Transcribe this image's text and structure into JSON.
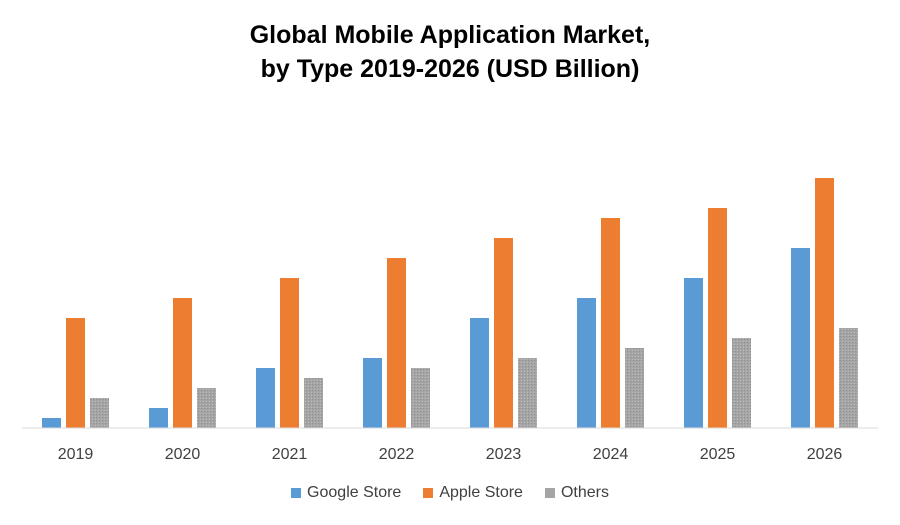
{
  "chart_data": {
    "type": "bar",
    "title_lines": [
      "Global Mobile Application Market,",
      "by Type 2019-2026 (USD Billion)"
    ],
    "categories": [
      "2019",
      "2020",
      "2021",
      "2022",
      "2023",
      "2024",
      "2025",
      "2026"
    ],
    "series": [
      {
        "name": "Google Store",
        "color": "#5B9BD5",
        "values": [
          1,
          2,
          6,
          7,
          11,
          13,
          15,
          18
        ]
      },
      {
        "name": "Apple Store",
        "color": "#ED7D31",
        "values": [
          11,
          13,
          15,
          17,
          19,
          21,
          22,
          25
        ]
      },
      {
        "name": "Others",
        "color": "#A5A5A5",
        "values": [
          3,
          4,
          5,
          6,
          7,
          8,
          9,
          10
        ]
      }
    ],
    "ylim": [
      0,
      26
    ],
    "grid": false,
    "y_axis_labels_shown": false,
    "legend_position": "bottom"
  }
}
